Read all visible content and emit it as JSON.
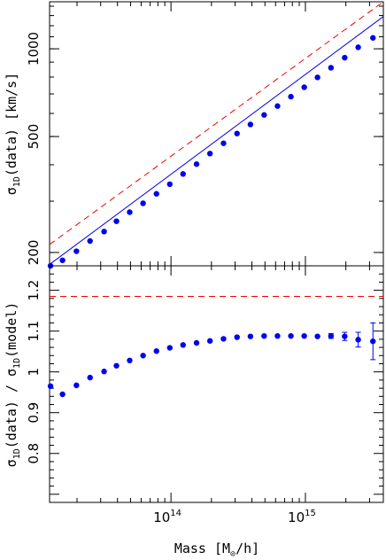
{
  "chart_data": [
    {
      "type": "scatter",
      "panel": "top",
      "xscale": "log",
      "yscale": "log",
      "xlim": [
        12500000000000.0,
        3800000000000000.0
      ],
      "ylim": [
        180,
        1450
      ],
      "xlabel": "",
      "ylabel": {
        "pre": "σ",
        "sub": "1D",
        "post": "(data) [km/s]"
      },
      "yticks_labeled": [
        {
          "value": 200,
          "label": "200"
        },
        {
          "value": 500,
          "label": "500"
        },
        {
          "value": 1000,
          "label": "1000"
        }
      ],
      "series": [
        {
          "style": "points",
          "color": "#0000ee",
          "x": [
            12700000000000.0,
            15600000000000.0,
            19800000000000.0,
            25000000000000.0,
            31800000000000.0,
            39300000000000.0,
            49300000000000.0,
            62000000000000.0,
            78000000000000.0,
            98000000000000.0,
            123000000000000.0,
            155000000000000.0,
            195000000000000.0,
            246000000000000.0,
            310000000000000.0,
            390000000000000.0,
            493000000000000.0,
            620000000000000.0,
            780000000000000.0,
            980000000000000.0,
            1230000000000000.0,
            1550000000000000.0,
            1960000000000000.0,
            2470000000000000.0,
            3180000000000000.0
          ],
          "y": [
            180,
            188,
            202,
            219,
            236,
            256,
            275,
            295,
            318,
            343,
            372,
            402,
            437,
            474,
            512,
            550,
            593,
            636,
            685,
            738,
            798,
            861,
            932,
            1012,
            1090
          ]
        },
        {
          "style": "solid",
          "color": "#0000ee",
          "x": [
            12500000000000.0,
            3800000000000000.0
          ],
          "y": [
            182,
            1290
          ]
        },
        {
          "style": "dashed",
          "color": "#ee0000",
          "x": [
            12500000000000.0,
            3800000000000000.0
          ],
          "y": [
            213,
            1450
          ]
        }
      ]
    },
    {
      "type": "scatter",
      "panel": "bottom",
      "xscale": "log",
      "yscale": "linear",
      "xlim": [
        12500000000000.0,
        3800000000000000.0
      ],
      "ylim": [
        0.68,
        1.26
      ],
      "xlabel": {
        "pre": "Mass [M",
        "sub": "⊙",
        "post": "/h]"
      },
      "ylabel": {
        "pre": "σ",
        "sub1": "1D",
        "mid": "(data) / σ",
        "sub2": "1D",
        "post": "(model)"
      },
      "xticks_labeled": [
        {
          "value": 100000000000000.0,
          "base": "10",
          "exp": "14"
        },
        {
          "value": 1000000000000000.0,
          "base": "10",
          "exp": "15"
        }
      ],
      "yticks_labeled": [
        {
          "value": 0.8,
          "label": "0.8"
        },
        {
          "value": 0.9,
          "label": "0.9"
        },
        {
          "value": 1.0,
          "label": "1"
        },
        {
          "value": 1.1,
          "label": "1.1"
        },
        {
          "value": 1.2,
          "label": "1.2"
        }
      ],
      "series": [
        {
          "style": "points",
          "color": "#0000ee",
          "x": [
            12700000000000.0,
            15600000000000.0,
            19800000000000.0,
            25000000000000.0,
            31800000000000.0,
            39300000000000.0,
            49300000000000.0,
            62000000000000.0,
            78000000000000.0,
            98000000000000.0,
            123000000000000.0,
            155000000000000.0,
            195000000000000.0,
            246000000000000.0,
            310000000000000.0,
            390000000000000.0,
            493000000000000.0,
            620000000000000.0,
            780000000000000.0,
            980000000000000.0,
            1230000000000000.0,
            1550000000000000.0,
            1960000000000000.0,
            2470000000000000.0,
            3180000000000000.0
          ],
          "y": [
            0.965,
            0.945,
            0.967,
            0.986,
            1.001,
            1.015,
            1.028,
            1.04,
            1.051,
            1.059,
            1.066,
            1.071,
            1.076,
            1.081,
            1.085,
            1.087,
            1.088,
            1.088,
            1.088,
            1.088,
            1.087,
            1.088,
            1.087,
            1.079,
            1.075
          ],
          "yerr": [
            0,
            0,
            0,
            0,
            0,
            0,
            0,
            0,
            0,
            0,
            0,
            0,
            0,
            0,
            0,
            0,
            0,
            0,
            0,
            0,
            0,
            0.006,
            0.01,
            0.018,
            0.045
          ]
        },
        {
          "style": "dashed",
          "color": "#ee0000",
          "x": [
            12500000000000.0,
            3800000000000000.0
          ],
          "y": [
            1.185,
            1.185
          ]
        }
      ]
    }
  ]
}
